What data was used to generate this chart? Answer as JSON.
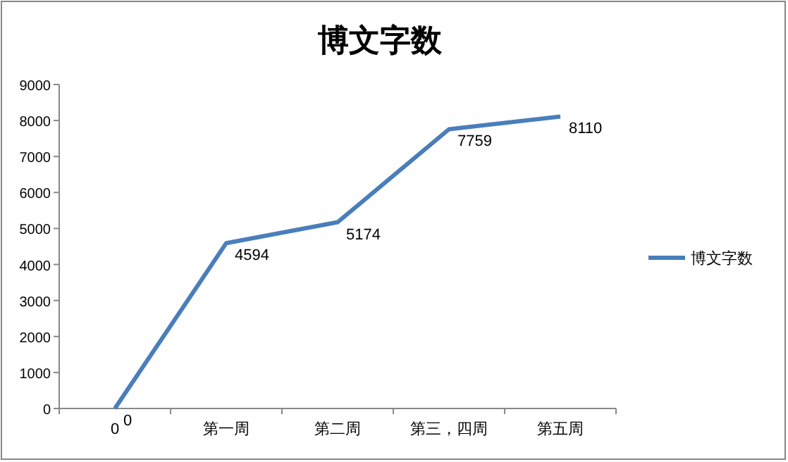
{
  "chart_data": {
    "type": "line",
    "title": "博文字数",
    "categories": [
      "0",
      "第一周",
      "第二周",
      "第三，四周",
      "第五周"
    ],
    "series": [
      {
        "name": "博文字数",
        "color": "#4a7ebb",
        "values": [
          0,
          4594,
          5174,
          7759,
          8110
        ]
      }
    ],
    "ylim": [
      0,
      9000
    ],
    "yticks": [
      0,
      1000,
      2000,
      3000,
      4000,
      5000,
      6000,
      7000,
      8000,
      9000
    ],
    "data_labels": true,
    "legend": "right",
    "grid": false,
    "marker": "none",
    "line_style": "solid"
  }
}
